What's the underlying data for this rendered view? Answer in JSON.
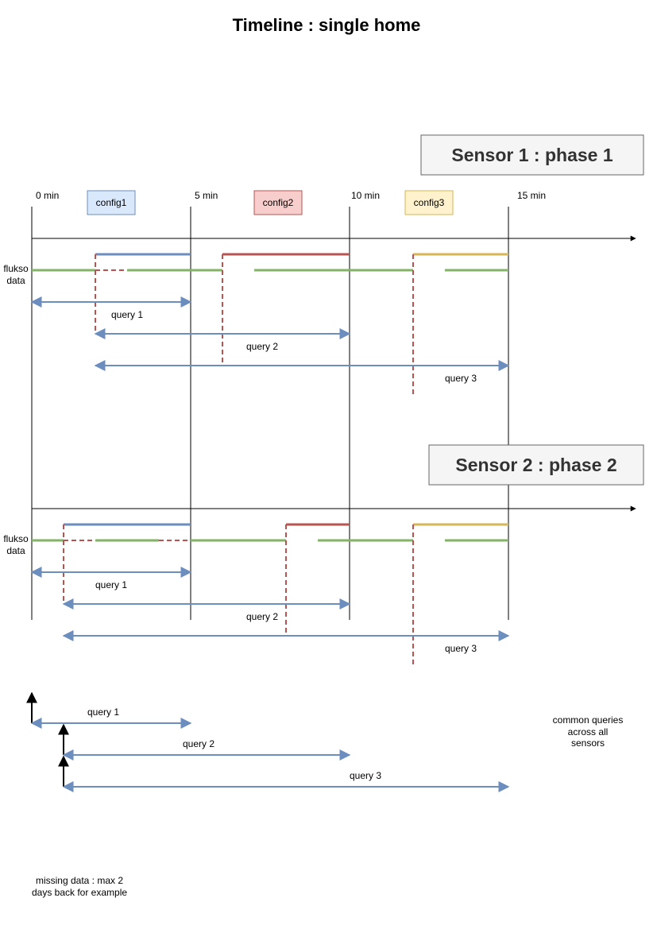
{
  "title": "Timeline :  single home",
  "time_labels": [
    "0 min",
    "5 min",
    "10 min",
    "15 min"
  ],
  "configs": [
    {
      "label": "config1",
      "fill": "#dae8fc",
      "stroke": "#6c8ebf"
    },
    {
      "label": "config2",
      "fill": "#f8cecc",
      "stroke": "#b85450"
    },
    {
      "label": "config3",
      "fill": "#fff2cc",
      "stroke": "#d6b656"
    }
  ],
  "sensor1": {
    "title": "Sensor 1 : phase 1",
    "flukso_label": [
      "flukso",
      "data"
    ],
    "queries": [
      "query 1",
      "query 2",
      "query 3"
    ]
  },
  "sensor2": {
    "title": "Sensor 2 : phase 2",
    "flukso_label": [
      "flukso",
      "data"
    ],
    "queries": [
      "query 1",
      "query 2",
      "query 3"
    ]
  },
  "common": {
    "queries": [
      "query 1",
      "query 2",
      "query 3"
    ],
    "note": [
      "common queries",
      "across all",
      "sensors"
    ]
  },
  "missing_note": [
    "missing data : max 2",
    "days back for example"
  ],
  "colors": {
    "blue": "#6c8ebf",
    "red": "#b85450",
    "yellow": "#d6b656",
    "green": "#82b366",
    "arrow": "#6c8ebf",
    "sensor_fill": "#f5f5f5",
    "sensor_stroke": "#666666",
    "text": "#000000"
  }
}
